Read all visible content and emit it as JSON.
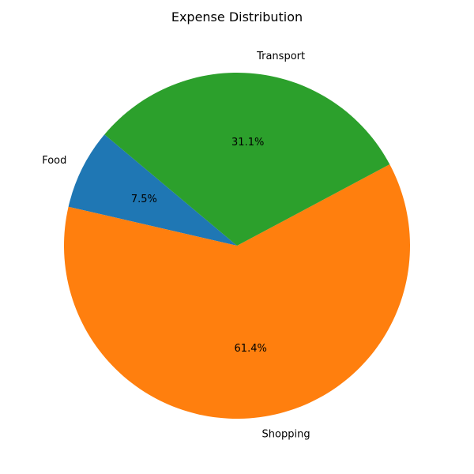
{
  "chart_data": {
    "type": "pie",
    "title": "Expense Distribution",
    "start_angle_deg": 140,
    "direction": "counterclockwise",
    "slices": [
      {
        "label": "Food",
        "value": 7.5,
        "pct_label": "7.5%",
        "color": "#1f77b4"
      },
      {
        "label": "Shopping",
        "value": 61.4,
        "pct_label": "61.4%",
        "color": "#ff7f0e"
      },
      {
        "label": "Transport",
        "value": 31.1,
        "pct_label": "31.1%",
        "color": "#2ca02c"
      }
    ]
  }
}
